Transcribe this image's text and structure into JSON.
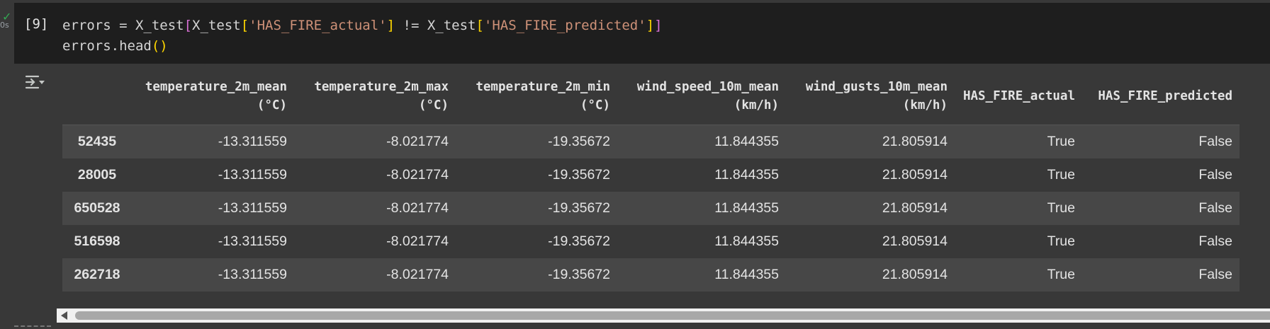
{
  "cell": {
    "status_time": "0s",
    "exec_count": "[9]",
    "code": {
      "line1": {
        "p1": "errors = X_test",
        "b1": "[",
        "p2": "X_test",
        "b2": "[",
        "s1": "'HAS_FIRE_actual'",
        "b3": "]",
        "p3": " != X_test",
        "b4": "[",
        "s2": "'HAS_FIRE_predicted'",
        "b5": "]",
        "b6": "]"
      },
      "line2": {
        "p1": "errors.head",
        "b1": "()"
      }
    }
  },
  "output": {
    "icon": "output-options-icon",
    "columns": [
      {
        "line1": "",
        "line2": ""
      },
      {
        "line1": "temperature_2m_mean",
        "line2": "(°C)"
      },
      {
        "line1": "temperature_2m_max",
        "line2": "(°C)"
      },
      {
        "line1": "temperature_2m_min",
        "line2": "(°C)"
      },
      {
        "line1": "wind_speed_10m_mean",
        "line2": "(km/h)"
      },
      {
        "line1": "wind_gusts_10m_mean",
        "line2": "(km/h)"
      },
      {
        "line1": "HAS_FIRE_actual",
        "line2": ""
      },
      {
        "line1": "HAS_FIRE_predicted",
        "line2": ""
      }
    ],
    "rows": [
      [
        "52435",
        "-13.311559",
        "-8.021774",
        "-19.35672",
        "11.844355",
        "21.805914",
        "True",
        "False"
      ],
      [
        "28005",
        "-13.311559",
        "-8.021774",
        "-19.35672",
        "11.844355",
        "21.805914",
        "True",
        "False"
      ],
      [
        "650528",
        "-13.311559",
        "-8.021774",
        "-19.35672",
        "11.844355",
        "21.805914",
        "True",
        "False"
      ],
      [
        "516598",
        "-13.311559",
        "-8.021774",
        "-19.35672",
        "11.844355",
        "21.805914",
        "True",
        "False"
      ],
      [
        "262718",
        "-13.311559",
        "-8.021774",
        "-19.35672",
        "11.844355",
        "21.805914",
        "True",
        "False"
      ]
    ]
  },
  "colors": {
    "background": "#383838",
    "code_bg": "#1e1e1e",
    "string": "#ce9178",
    "check": "#34a853"
  }
}
